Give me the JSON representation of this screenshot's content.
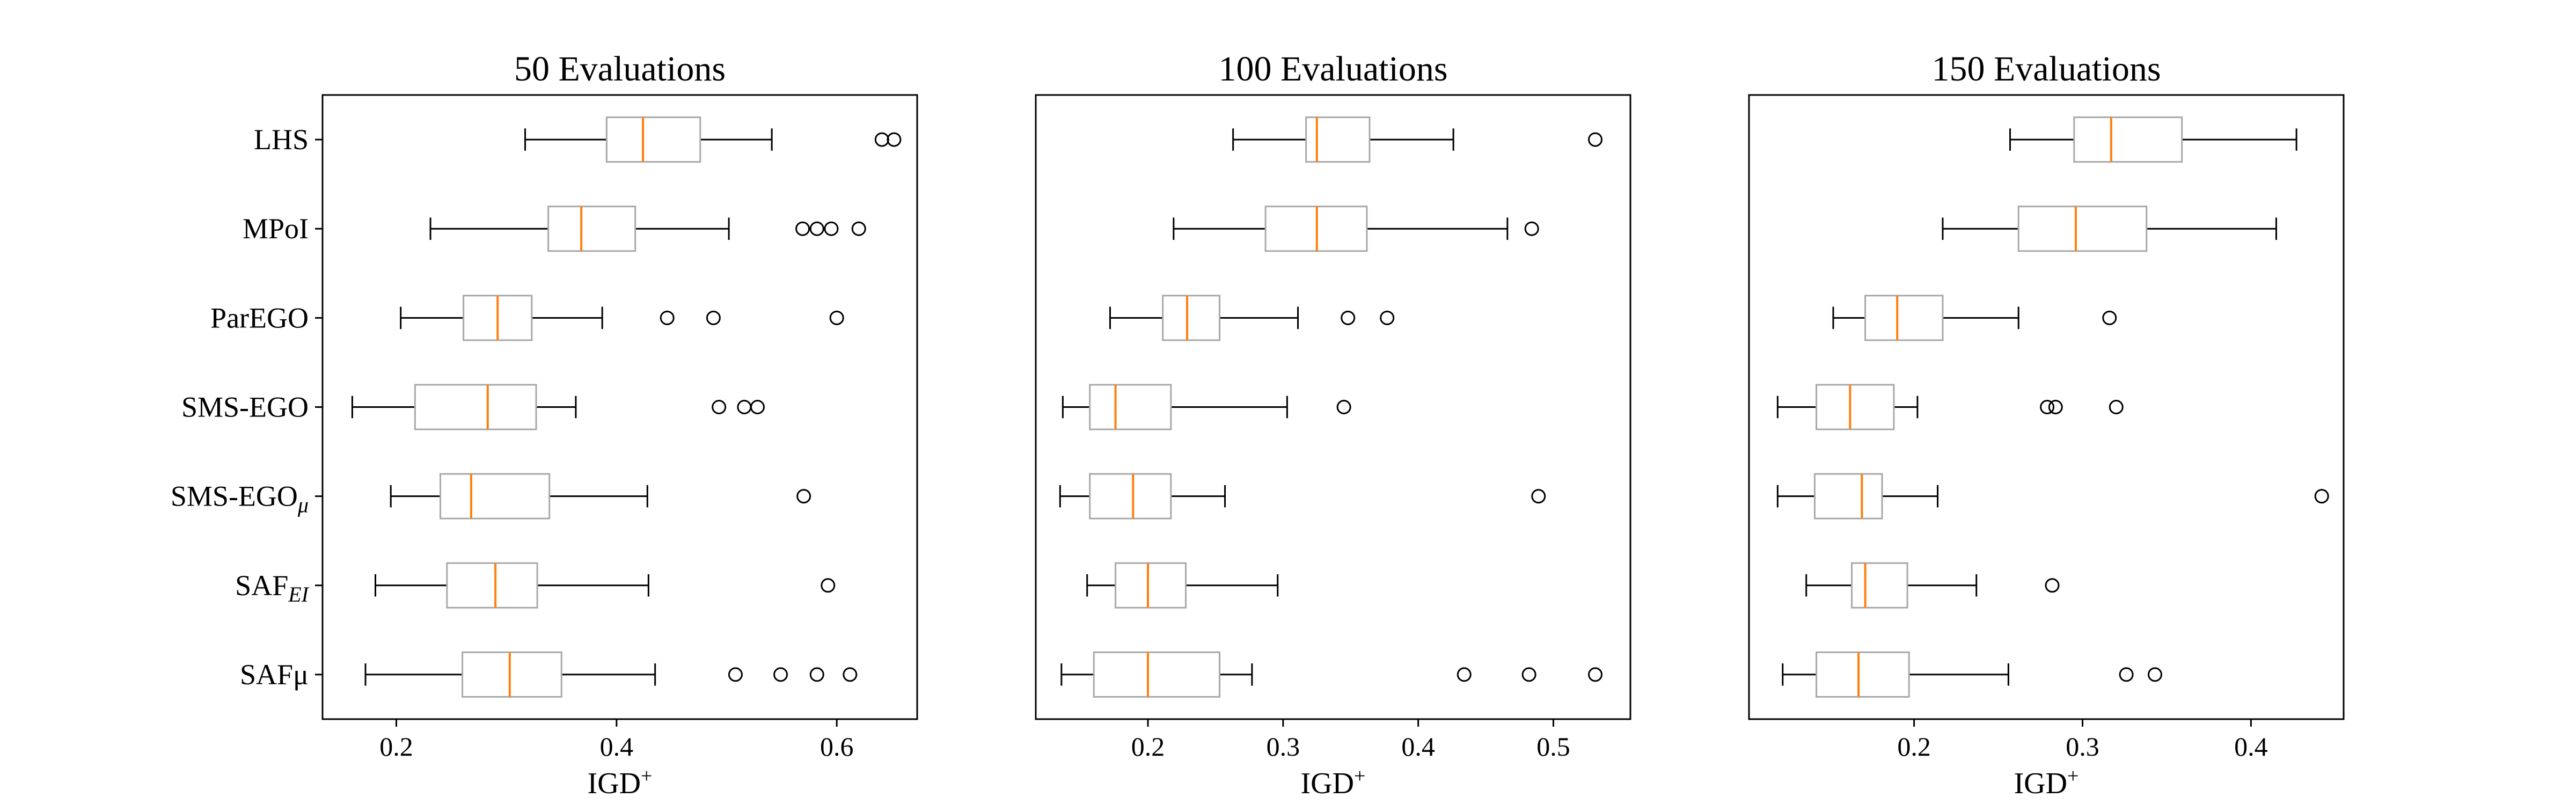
{
  "chart_data": {
    "type": "boxplot",
    "orientation": "horizontal",
    "categories": [
      "LHS",
      "MPoI",
      "ParEGO",
      "SMS-EGO",
      "SMS-EGOμ",
      "SAFEI",
      "SAFμ"
    ],
    "category_display": [
      {
        "base": "LHS",
        "sub": ""
      },
      {
        "base": "MPoI",
        "sub": ""
      },
      {
        "base": "ParEGO",
        "sub": ""
      },
      {
        "base": "SMS-EGO",
        "sub": ""
      },
      {
        "base": "SMS-EGO",
        "sub": "μ"
      },
      {
        "base": "SAF",
        "sub": "EI"
      },
      {
        "base": "SAFμ",
        "sub": ""
      }
    ],
    "colors": {
      "box": "#a8a8a8",
      "median": "#ff7f0e",
      "whisker": "#000000",
      "flier": "#000000"
    },
    "panels": [
      {
        "title": "50 Evaluations",
        "xlabel": "IGD",
        "xlabel_sup": "+",
        "xlim": [
          0.133,
          0.673
        ],
        "xticks": [
          0.2,
          0.4,
          0.6
        ],
        "xtick_labels": [
          "0.2",
          "0.4",
          "0.6"
        ],
        "boxes": [
          {
            "whislo": 0.317,
            "q1": 0.391,
            "med": 0.424,
            "q3": 0.476,
            "whishi": 0.541,
            "fliers": [
              0.641,
              0.652
            ]
          },
          {
            "whislo": 0.231,
            "q1": 0.338,
            "med": 0.368,
            "q3": 0.417,
            "whishi": 0.502,
            "fliers": [
              0.569,
              0.582,
              0.595,
              0.62
            ]
          },
          {
            "whislo": 0.204,
            "q1": 0.261,
            "med": 0.292,
            "q3": 0.323,
            "whishi": 0.387,
            "fliers": [
              0.446,
              0.488,
              0.6
            ]
          },
          {
            "whislo": 0.16,
            "q1": 0.217,
            "med": 0.283,
            "q3": 0.327,
            "whishi": 0.363,
            "fliers": [
              0.493,
              0.516,
              0.528
            ]
          },
          {
            "whislo": 0.195,
            "q1": 0.24,
            "med": 0.268,
            "q3": 0.339,
            "whishi": 0.428,
            "fliers": [
              0.57
            ]
          },
          {
            "whislo": 0.181,
            "q1": 0.246,
            "med": 0.29,
            "q3": 0.328,
            "whishi": 0.429,
            "fliers": [
              0.592
            ]
          },
          {
            "whislo": 0.172,
            "q1": 0.26,
            "med": 0.303,
            "q3": 0.35,
            "whishi": 0.435,
            "fliers": [
              0.508,
              0.549,
              0.582,
              0.612
            ]
          }
        ]
      },
      {
        "title": "100 Evaluations",
        "xlabel": "IGD",
        "xlabel_sup": "+",
        "xlim": [
          0.117,
          0.557
        ],
        "xticks": [
          0.2,
          0.3,
          0.4,
          0.5
        ],
        "xtick_labels": [
          "0.2",
          "0.3",
          "0.4",
          "0.5"
        ],
        "boxes": [
          {
            "whislo": 0.263,
            "q1": 0.317,
            "med": 0.325,
            "q3": 0.364,
            "whishi": 0.426,
            "fliers": [
              0.531
            ]
          },
          {
            "whislo": 0.219,
            "q1": 0.287,
            "med": 0.325,
            "q3": 0.362,
            "whishi": 0.466,
            "fliers": [
              0.484
            ]
          },
          {
            "whislo": 0.172,
            "q1": 0.211,
            "med": 0.229,
            "q3": 0.253,
            "whishi": 0.311,
            "fliers": [
              0.348,
              0.377
            ]
          },
          {
            "whislo": 0.137,
            "q1": 0.157,
            "med": 0.176,
            "q3": 0.217,
            "whishi": 0.303,
            "fliers": [
              0.345
            ]
          },
          {
            "whislo": 0.135,
            "q1": 0.157,
            "med": 0.189,
            "q3": 0.217,
            "whishi": 0.257,
            "fliers": [
              0.489
            ]
          },
          {
            "whislo": 0.155,
            "q1": 0.176,
            "med": 0.2,
            "q3": 0.228,
            "whishi": 0.296,
            "fliers": []
          },
          {
            "whislo": 0.136,
            "q1": 0.16,
            "med": 0.2,
            "q3": 0.253,
            "whishi": 0.277,
            "fliers": [
              0.434,
              0.482,
              0.531
            ]
          }
        ]
      },
      {
        "title": "150 Evaluations",
        "xlabel": "IGD",
        "xlabel_sup": "+",
        "xlim": [
          0.102,
          0.455
        ],
        "xticks": [
          0.2,
          0.3,
          0.4
        ],
        "xtick_labels": [
          "0.2",
          "0.3",
          "0.4"
        ],
        "boxes": [
          {
            "whislo": 0.257,
            "q1": 0.295,
            "med": 0.317,
            "q3": 0.359,
            "whishi": 0.427,
            "fliers": []
          },
          {
            "whislo": 0.217,
            "q1": 0.262,
            "med": 0.296,
            "q3": 0.338,
            "whishi": 0.415,
            "fliers": []
          },
          {
            "whislo": 0.152,
            "q1": 0.171,
            "med": 0.19,
            "q3": 0.217,
            "whishi": 0.262,
            "fliers": [
              0.316
            ]
          },
          {
            "whislo": 0.119,
            "q1": 0.142,
            "med": 0.162,
            "q3": 0.188,
            "whishi": 0.202,
            "fliers": [
              0.279,
              0.284,
              0.32
            ]
          },
          {
            "whislo": 0.119,
            "q1": 0.141,
            "med": 0.169,
            "q3": 0.181,
            "whishi": 0.214,
            "fliers": [
              0.442
            ]
          },
          {
            "whislo": 0.136,
            "q1": 0.163,
            "med": 0.171,
            "q3": 0.196,
            "whishi": 0.237,
            "fliers": [
              0.282
            ]
          },
          {
            "whislo": 0.122,
            "q1": 0.142,
            "med": 0.167,
            "q3": 0.197,
            "whishi": 0.256,
            "fliers": [
              0.326,
              0.343
            ]
          }
        ]
      }
    ]
  }
}
